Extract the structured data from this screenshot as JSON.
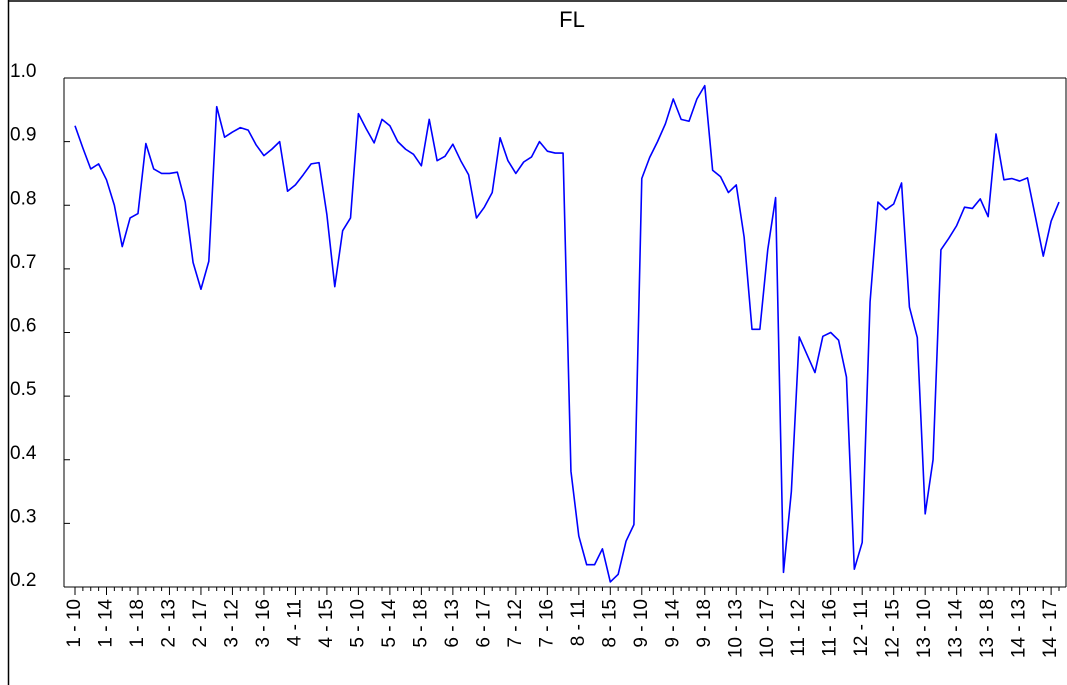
{
  "chart_data": {
    "type": "line",
    "title": "FL",
    "categories": [
      "1 - 10",
      null,
      null,
      null,
      "1 - 14",
      null,
      null,
      null,
      "1 - 18",
      null,
      null,
      null,
      "2 - 13",
      null,
      null,
      null,
      "2 - 17",
      null,
      null,
      null,
      "3 - 12",
      null,
      null,
      null,
      "3 - 16",
      null,
      null,
      null,
      "4 - 11",
      null,
      null,
      null,
      "4 - 15",
      null,
      null,
      null,
      "5 - 10",
      null,
      null,
      null,
      "5 - 14",
      null,
      null,
      null,
      "5 - 18",
      null,
      null,
      null,
      "6 - 13",
      null,
      null,
      null,
      "6 - 17",
      null,
      null,
      null,
      "7 - 12",
      null,
      null,
      null,
      "7 - 16",
      null,
      null,
      null,
      "8 - 11",
      null,
      null,
      null,
      "8 - 15",
      null,
      null,
      null,
      "9 - 10",
      null,
      null,
      null,
      "9 - 14",
      null,
      null,
      null,
      "9 - 18",
      null,
      null,
      null,
      "10 - 13",
      null,
      null,
      null,
      "10 - 17",
      null,
      null,
      null,
      "11 - 12",
      null,
      null,
      null,
      "11 - 16",
      null,
      null,
      null,
      "12 - 11",
      null,
      null,
      null,
      "12 - 15",
      null,
      null,
      null,
      "13 - 10",
      null,
      null,
      null,
      "13 - 14",
      null,
      null,
      null,
      "13 - 18",
      null,
      null,
      null,
      "14 - 13",
      null,
      null,
      null,
      "14 - 17",
      null
    ],
    "series": [
      {
        "name": "FL",
        "color": "#0000ff",
        "values": [
          0.925,
          0.89,
          0.857,
          0.865,
          0.84,
          0.8,
          0.735,
          0.78,
          0.787,
          0.897,
          0.857,
          0.85,
          0.85,
          0.852,
          0.805,
          0.71,
          0.668,
          0.712,
          0.955,
          0.907,
          0.915,
          0.922,
          0.918,
          0.895,
          0.878,
          0.888,
          0.9,
          0.822,
          0.832,
          0.848,
          0.865,
          0.867,
          0.785,
          0.672,
          0.76,
          0.78,
          0.944,
          0.92,
          0.898,
          0.935,
          0.925,
          0.9,
          0.888,
          0.88,
          0.862,
          0.935,
          0.87,
          0.877,
          0.896,
          0.87,
          0.848,
          0.78,
          0.797,
          0.82,
          0.906,
          0.87,
          0.85,
          0.868,
          0.876,
          0.9,
          0.885,
          0.882,
          0.882,
          0.382,
          0.28,
          0.235,
          0.235,
          0.26,
          0.208,
          0.22,
          0.272,
          0.298,
          0.842,
          0.875,
          0.9,
          0.928,
          0.967,
          0.935,
          0.932,
          0.967,
          0.988,
          0.855,
          0.845,
          0.82,
          0.832,
          0.75,
          0.605,
          0.605,
          0.73,
          0.812,
          0.223,
          0.35,
          0.593,
          0.565,
          0.537,
          0.594,
          0.6,
          0.588,
          0.53,
          0.228,
          0.27,
          0.648,
          0.805,
          0.793,
          0.802,
          0.835,
          0.64,
          0.592,
          0.315,
          0.4,
          0.73,
          0.748,
          0.768,
          0.797,
          0.795,
          0.81,
          0.782,
          0.912,
          0.84,
          0.842,
          0.838,
          0.843,
          0.782,
          0.72,
          0.775,
          0.805
        ]
      }
    ],
    "ylim": [
      0.2,
      1.0
    ],
    "yticks": [
      {
        "value": 0.2,
        "label": "0.2"
      },
      {
        "value": 0.3,
        "label": "0.3"
      },
      {
        "value": 0.4,
        "label": "0.4"
      },
      {
        "value": 0.5,
        "label": "0.5"
      },
      {
        "value": 0.6,
        "label": "0.6"
      },
      {
        "value": 0.7,
        "label": "0.7"
      },
      {
        "value": 0.8,
        "label": "0.8"
      },
      {
        "value": 0.9,
        "label": "0.9"
      },
      {
        "value": 1.0,
        "label": "1.0"
      }
    ],
    "grid": false
  }
}
